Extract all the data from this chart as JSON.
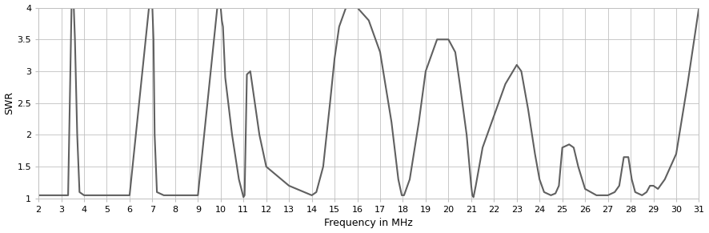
{
  "xlabel": "Frequency in MHz",
  "ylabel": "SWR",
  "xlim": [
    2,
    31
  ],
  "ylim": [
    1,
    4
  ],
  "xticks": [
    2,
    3,
    4,
    5,
    6,
    7,
    8,
    9,
    10,
    11,
    12,
    13,
    14,
    15,
    16,
    17,
    18,
    19,
    20,
    21,
    22,
    23,
    24,
    25,
    26,
    27,
    28,
    29,
    30,
    31
  ],
  "yticks": [
    1,
    1.5,
    2,
    2.5,
    3,
    3.5,
    4
  ],
  "line_color": "#606060",
  "background_color": "#ffffff",
  "grid_color": "#c0c0c0",
  "x": [
    2.0,
    3.3,
    3.45,
    3.5,
    3.55,
    3.6,
    3.7,
    3.8,
    4.0,
    5.0,
    6.0,
    6.85,
    6.95,
    7.0,
    7.05,
    7.1,
    7.2,
    7.5,
    8.0,
    9.0,
    9.85,
    9.95,
    10.0,
    10.05,
    10.1,
    10.2,
    10.5,
    10.8,
    11.0,
    11.05,
    11.15,
    11.3,
    11.5,
    11.7,
    12.0,
    13.0,
    14.0,
    14.2,
    14.5,
    14.8,
    15.0,
    15.2,
    15.5,
    16.0,
    16.5,
    17.0,
    17.5,
    17.8,
    17.95,
    18.05,
    18.3,
    18.7,
    19.0,
    19.5,
    20.0,
    20.3,
    20.5,
    20.8,
    21.0,
    21.05,
    21.1,
    21.2,
    21.5,
    22.0,
    22.5,
    23.0,
    23.2,
    23.5,
    23.8,
    24.0,
    24.2,
    24.5,
    24.7,
    24.85,
    25.0,
    25.3,
    25.5,
    25.7,
    26.0,
    26.5,
    27.0,
    27.3,
    27.5,
    27.7,
    27.9,
    28.05,
    28.2,
    28.5,
    28.7,
    28.85,
    29.0,
    29.2,
    29.5,
    30.0,
    30.5,
    31.0
  ],
  "y": [
    1.05,
    1.05,
    4.0,
    4.0,
    4.0,
    3.5,
    2.0,
    1.1,
    1.05,
    1.05,
    1.05,
    4.0,
    4.0,
    4.0,
    3.5,
    2.0,
    1.1,
    1.05,
    1.05,
    1.05,
    4.0,
    4.0,
    4.0,
    3.8,
    3.7,
    2.9,
    2.0,
    1.3,
    1.02,
    1.05,
    2.95,
    3.0,
    2.5,
    2.0,
    1.5,
    1.2,
    1.05,
    1.1,
    1.5,
    2.5,
    3.2,
    3.7,
    4.0,
    4.0,
    3.8,
    3.3,
    2.2,
    1.3,
    1.05,
    1.05,
    1.3,
    2.2,
    3.0,
    3.5,
    3.5,
    3.3,
    2.8,
    2.0,
    1.2,
    1.05,
    1.02,
    1.2,
    1.8,
    2.3,
    2.8,
    3.1,
    3.0,
    2.4,
    1.7,
    1.3,
    1.1,
    1.05,
    1.08,
    1.2,
    1.8,
    1.85,
    1.8,
    1.5,
    1.15,
    1.05,
    1.05,
    1.1,
    1.2,
    1.65,
    1.65,
    1.3,
    1.1,
    1.05,
    1.1,
    1.2,
    1.2,
    1.15,
    1.3,
    1.7,
    2.8,
    4.0
  ]
}
